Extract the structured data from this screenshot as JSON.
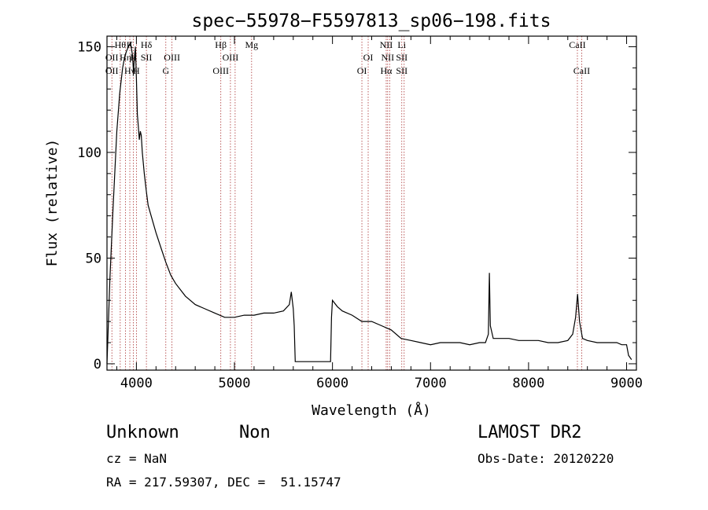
{
  "chart_data": {
    "type": "line",
    "title": "spec−55978−F5597813_sp06−198.fits",
    "xlabel": "Wavelength (Å)",
    "ylabel": "Flux (relative)",
    "xlim": [
      3700,
      9100
    ],
    "ylim": [
      -3,
      155
    ],
    "xticks": [
      4000,
      5000,
      6000,
      7000,
      8000,
      9000
    ],
    "yticks": [
      0,
      50,
      100,
      150
    ],
    "grid": false,
    "series": [
      {
        "x": [
          3700,
          3730,
          3760,
          3800,
          3830,
          3860,
          3880,
          3900,
          3920,
          3940,
          3960,
          3970,
          3980,
          3990,
          4000,
          4010,
          4020,
          4030,
          4040,
          4050,
          4060,
          4080,
          4100,
          4120,
          4150,
          4200,
          4250,
          4300,
          4350,
          4400,
          4500,
          4600,
          4700,
          4800,
          4900,
          5000,
          5100,
          5200,
          5300,
          5400,
          5500,
          5560,
          5580,
          5600,
          5610,
          5620,
          5980,
          5990,
          6000,
          6050,
          6100,
          6200,
          6300,
          6400,
          6500,
          6600,
          6700,
          6800,
          6900,
          7000,
          7100,
          7200,
          7300,
          7400,
          7500,
          7560,
          7590,
          7600,
          7610,
          7640,
          7700,
          7800,
          7900,
          8000,
          8100,
          8200,
          8300,
          8400,
          8450,
          8480,
          8500,
          8520,
          8550,
          8600,
          8700,
          8800,
          8900,
          8950,
          9000,
          9020,
          9050
        ],
        "y": [
          0,
          40,
          72,
          110,
          128,
          140,
          145,
          148,
          150,
          152,
          146,
          138,
          145,
          150,
          135,
          118,
          112,
          106,
          110,
          108,
          100,
          90,
          82,
          75,
          70,
          62,
          55,
          48,
          42,
          38,
          32,
          28,
          26,
          24,
          22,
          22,
          23,
          23,
          24,
          24,
          25,
          28,
          34,
          26,
          18,
          1,
          1,
          22,
          30,
          27,
          25,
          23,
          20,
          20,
          18,
          16,
          12,
          11,
          10,
          9,
          10,
          10,
          10,
          9,
          10,
          10,
          14,
          43,
          18,
          12,
          12,
          12,
          11,
          11,
          11,
          10,
          10,
          11,
          14,
          22,
          33,
          20,
          12,
          11,
          10,
          10,
          10,
          9,
          9,
          4,
          2
        ]
      }
    ],
    "lines": [
      {
        "x": 3750,
        "labels": [
          "",
          "OII",
          "OII"
        ]
      },
      {
        "x": 3835,
        "labels": [
          "Hθ",
          "",
          ""
        ]
      },
      {
        "x": 3889,
        "labels": [
          "",
          "Hη",
          ""
        ]
      },
      {
        "x": 3933,
        "labels": [
          "K",
          "",
          "Hγ"
        ]
      },
      {
        "x": 3969,
        "labels": [
          "",
          "H",
          ""
        ]
      },
      {
        "x": 4000,
        "labels": [
          "",
          "",
          "H"
        ]
      },
      {
        "x": 4102,
        "labels": [
          "Hδ",
          "SII",
          ""
        ]
      },
      {
        "x": 4300,
        "labels": [
          "",
          "",
          "G"
        ]
      },
      {
        "x": 4363,
        "labels": [
          "",
          "OIII",
          ""
        ]
      },
      {
        "x": 4861,
        "labels": [
          "Hβ",
          "",
          "OIII"
        ]
      },
      {
        "x": 4959,
        "labels": [
          "",
          "OIII",
          ""
        ]
      },
      {
        "x": 5007,
        "labels": [
          "",
          "",
          ""
        ]
      },
      {
        "x": 5175,
        "labels": [
          "Mg",
          "",
          ""
        ]
      },
      {
        "x": 6300,
        "labels": [
          "",
          "",
          "OI"
        ]
      },
      {
        "x": 6364,
        "labels": [
          "",
          "OI",
          ""
        ]
      },
      {
        "x": 6548,
        "labels": [
          "NII",
          "",
          "Hα"
        ]
      },
      {
        "x": 6563,
        "labels": [
          "",
          "NII",
          ""
        ]
      },
      {
        "x": 6583,
        "labels": [
          "",
          "",
          ""
        ]
      },
      {
        "x": 6707,
        "labels": [
          "Li",
          "SII",
          "SII"
        ]
      },
      {
        "x": 6731,
        "labels": [
          "",
          "",
          ""
        ]
      },
      {
        "x": 8498,
        "labels": [
          "CaII",
          "",
          ""
        ]
      },
      {
        "x": 8542,
        "labels": [
          "",
          "",
          "CaII"
        ]
      }
    ]
  },
  "footer": {
    "object_class": "Unknown",
    "subclass": "Non",
    "survey": "LAMOST DR2",
    "redshift": "cz = NaN",
    "obs_date": "Obs-Date: 20120220",
    "coords": "RA = 217.59307, DEC =  51.15747"
  }
}
